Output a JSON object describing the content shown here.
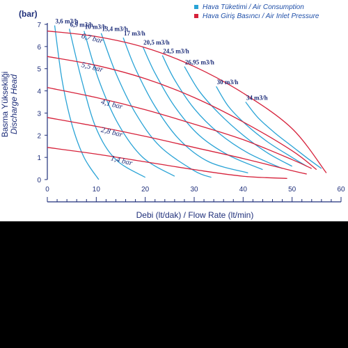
{
  "chart_data": {
    "type": "line",
    "xlabel": "Debi (lt/dak) / Flow Rate (lt/min)",
    "ylabel_tr": "Basma Yüksekliği",
    "ylabel_en": "Discharge Head",
    "y_unit": "(bar)",
    "xlim": [
      0,
      60
    ],
    "ylim": [
      0,
      7
    ],
    "x_ticks": [
      0,
      10,
      20,
      30,
      40,
      50,
      60
    ],
    "y_ticks": [
      0,
      1,
      2,
      3,
      4,
      5,
      6,
      7
    ],
    "legend": [
      {
        "name": "Hava Tüketimi / Air Consumption",
        "color": "#29a3d6"
      },
      {
        "name": "Hava Giriş Basıncı / Air Inlet Pressure",
        "color": "#d6213a"
      }
    ],
    "pressure_series": [
      {
        "name": "6,7 bar",
        "color": "#d6213a",
        "points": [
          [
            0,
            6.7
          ],
          [
            10,
            6.45
          ],
          [
            20,
            5.95
          ],
          [
            30,
            5.1
          ],
          [
            40,
            3.9
          ],
          [
            50,
            2.3
          ],
          [
            57,
            0.3
          ]
        ]
      },
      {
        "name": "5,5 bar",
        "color": "#d6213a",
        "points": [
          [
            0,
            5.55
          ],
          [
            10,
            5.15
          ],
          [
            20,
            4.55
          ],
          [
            30,
            3.7
          ],
          [
            40,
            2.6
          ],
          [
            50,
            1.3
          ],
          [
            55,
            0.45
          ]
        ]
      },
      {
        "name": "4,1 bar",
        "color": "#d6213a",
        "points": [
          [
            0,
            4.15
          ],
          [
            10,
            3.7
          ],
          [
            20,
            3.15
          ],
          [
            30,
            2.5
          ],
          [
            40,
            1.8
          ],
          [
            50,
            0.9
          ],
          [
            54,
            0.5
          ]
        ]
      },
      {
        "name": "2,8 bar",
        "color": "#d6213a",
        "points": [
          [
            0,
            2.8
          ],
          [
            10,
            2.4
          ],
          [
            20,
            1.95
          ],
          [
            30,
            1.45
          ],
          [
            40,
            0.95
          ],
          [
            50,
            0.4
          ],
          [
            53,
            0.25
          ]
        ]
      },
      {
        "name": "1,4 bar",
        "color": "#d6213a",
        "points": [
          [
            0,
            1.45
          ],
          [
            10,
            1.15
          ],
          [
            20,
            0.8
          ],
          [
            30,
            0.45
          ],
          [
            40,
            0.15
          ],
          [
            49,
            0.05
          ]
        ]
      }
    ],
    "consumption_series": [
      {
        "name": "3,6 m3/h",
        "color": "#29a3d6",
        "points": [
          [
            1.5,
            6.95
          ],
          [
            3,
            4.5
          ],
          [
            5,
            2.5
          ],
          [
            7.5,
            1.0
          ],
          [
            10.5,
            0.0
          ]
        ]
      },
      {
        "name": "6,9 m3/h",
        "color": "#29a3d6",
        "points": [
          [
            4.5,
            6.8
          ],
          [
            7,
            4.5
          ],
          [
            10,
            2.3
          ],
          [
            14,
            0.9
          ],
          [
            20,
            0.1
          ]
        ]
      },
      {
        "name": "10 m3/h",
        "color": "#29a3d6",
        "points": [
          [
            7.5,
            6.7
          ],
          [
            10.5,
            4.5
          ],
          [
            14.5,
            2.5
          ],
          [
            19.5,
            1.0
          ],
          [
            26,
            0.15
          ]
        ]
      },
      {
        "name": "13,4 m3/h",
        "color": "#29a3d6",
        "points": [
          [
            11,
            6.6
          ],
          [
            14,
            4.8
          ],
          [
            18,
            3.0
          ],
          [
            23,
            1.5
          ],
          [
            30,
            0.4
          ],
          [
            33.5,
            0.1
          ]
        ]
      },
      {
        "name": "17 m3/h",
        "color": "#29a3d6",
        "points": [
          [
            15.5,
            6.4
          ],
          [
            18,
            5.0
          ],
          [
            22,
            3.3
          ],
          [
            27,
            1.8
          ],
          [
            33,
            0.8
          ],
          [
            41,
            0.3
          ]
        ]
      },
      {
        "name": "20,5 m3/h",
        "color": "#29a3d6",
        "points": [
          [
            19.5,
            6.0
          ],
          [
            22,
            4.8
          ],
          [
            26,
            3.3
          ],
          [
            31,
            2.0
          ],
          [
            37,
            1.1
          ],
          [
            44,
            0.45
          ]
        ]
      },
      {
        "name": "24,5 m3/h",
        "color": "#29a3d6",
        "points": [
          [
            23.5,
            5.6
          ],
          [
            26,
            4.5
          ],
          [
            30,
            3.2
          ],
          [
            35,
            2.1
          ],
          [
            41,
            1.2
          ],
          [
            48,
            0.5
          ]
        ]
      },
      {
        "name": "26,95 m3/h",
        "color": "#29a3d6",
        "points": [
          [
            28,
            5.1
          ],
          [
            31,
            4.0
          ],
          [
            35,
            3.0
          ],
          [
            40,
            2.0
          ],
          [
            45,
            1.2
          ],
          [
            50,
            0.6
          ]
        ]
      },
      {
        "name": "30 m3/h",
        "color": "#29a3d6",
        "points": [
          [
            34.5,
            4.2
          ],
          [
            37,
            3.3
          ],
          [
            40.5,
            2.5
          ],
          [
            45,
            1.7
          ],
          [
            50,
            1.0
          ],
          [
            53,
            0.6
          ]
        ]
      },
      {
        "name": "34 m3/h",
        "color": "#29a3d6",
        "points": [
          [
            40.5,
            3.5
          ],
          [
            43,
            2.8
          ],
          [
            46.5,
            2.1
          ],
          [
            50,
            1.5
          ],
          [
            53.5,
            0.9
          ],
          [
            56,
            0.5
          ]
        ]
      }
    ]
  }
}
